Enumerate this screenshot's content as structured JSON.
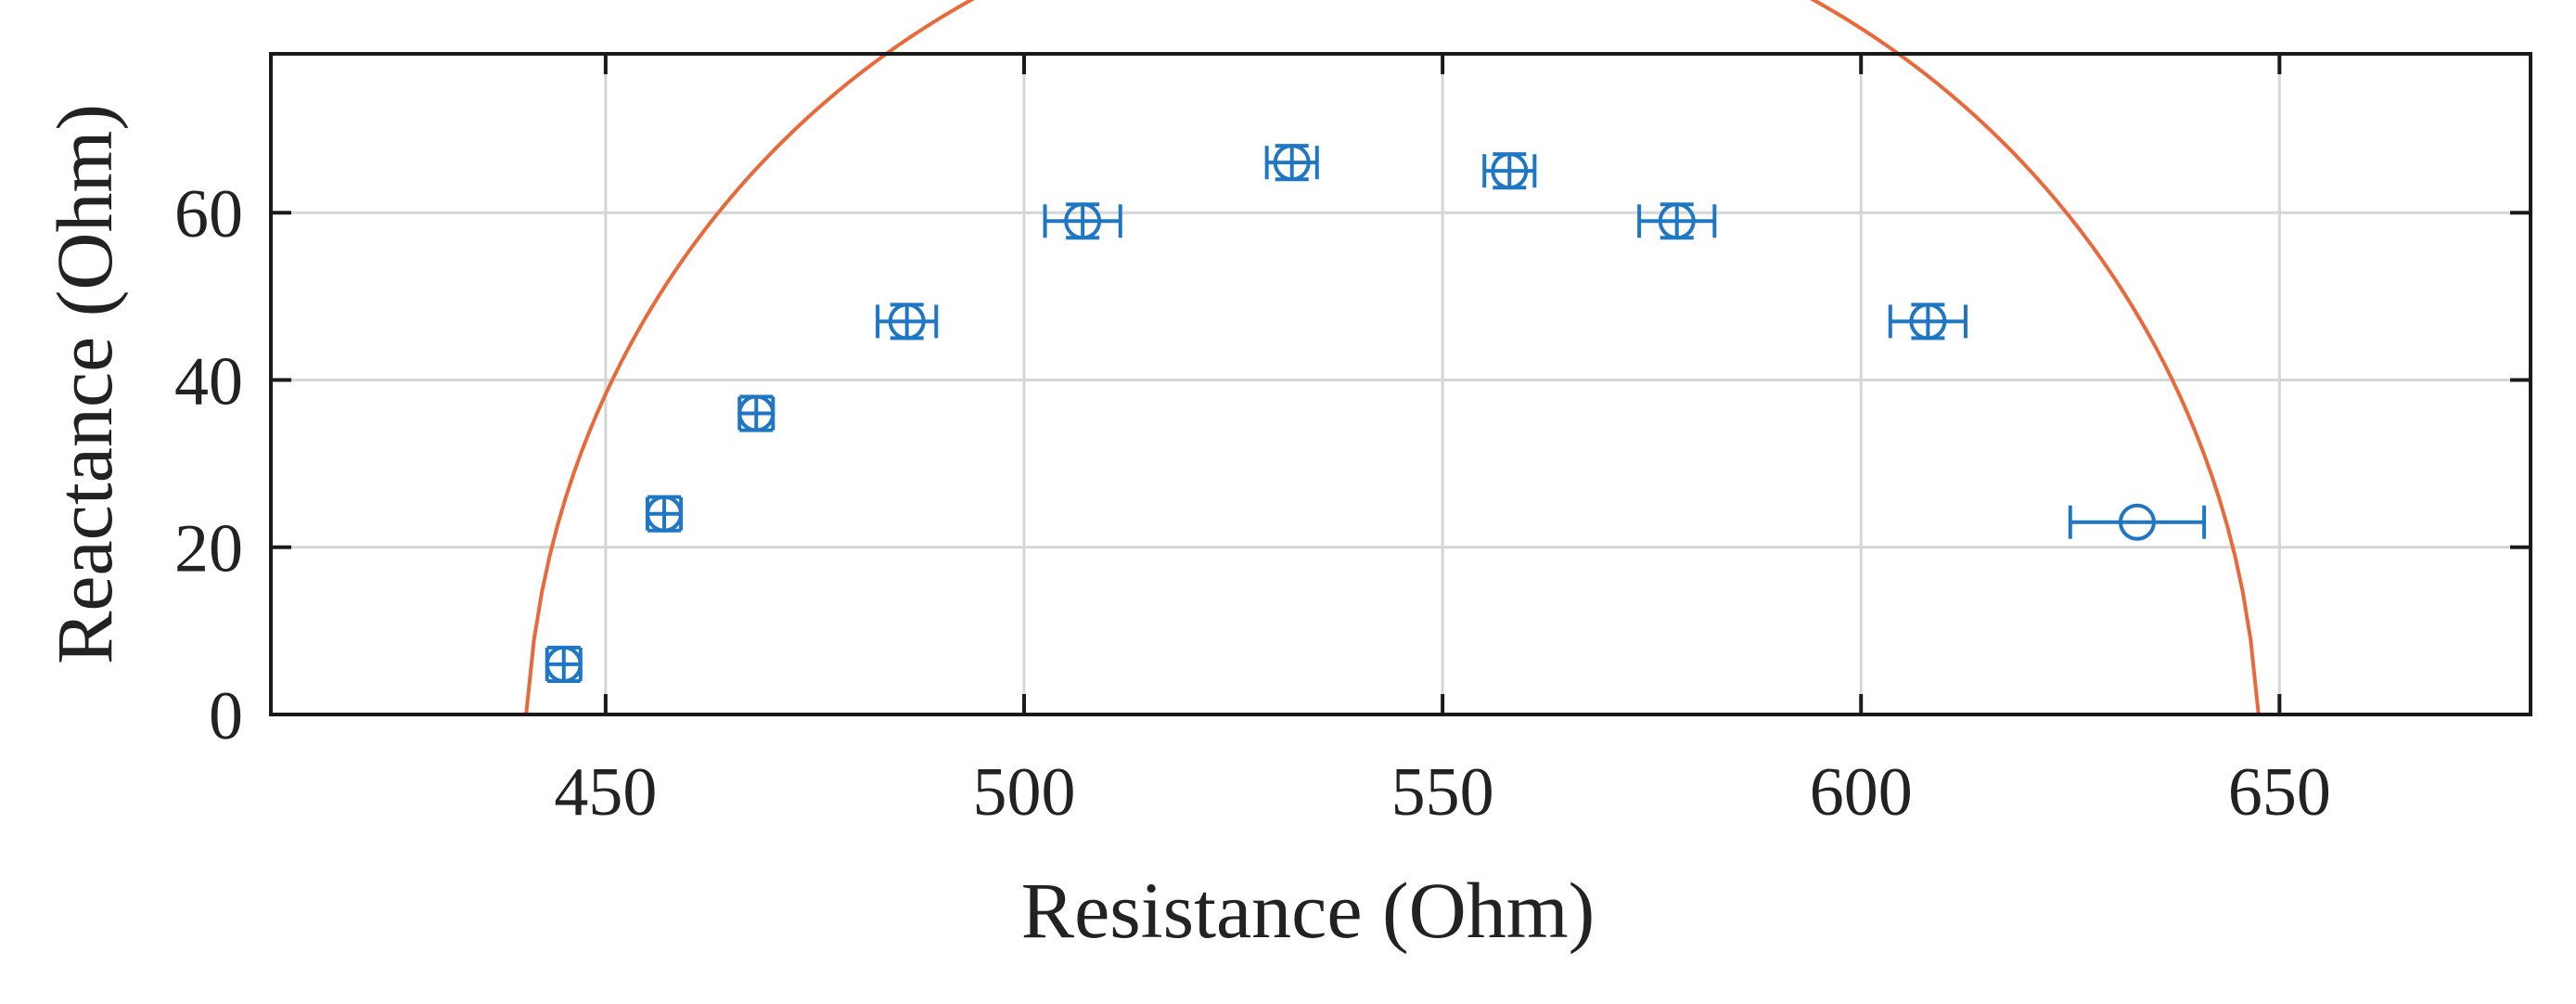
{
  "chart_data": {
    "type": "scatter",
    "xlabel": "Resistance (Ohm)",
    "ylabel": "Reactance (Ohm)",
    "xlim": [
      410,
      680
    ],
    "ylim": [
      0,
      79
    ],
    "x_ticks": [
      450,
      500,
      550,
      600,
      650
    ],
    "y_ticks": [
      0,
      20,
      40,
      60
    ],
    "grid": true,
    "legend": "none",
    "series": [
      {
        "type": "scatter-errorbar",
        "color": "#1f77c4",
        "marker": "circle",
        "points": [
          {
            "x": 445,
            "y": 6,
            "xerr": 2,
            "yerr": 2
          },
          {
            "x": 457,
            "y": 24,
            "xerr": 2,
            "yerr": 2
          },
          {
            "x": 468,
            "y": 36,
            "xerr": 2,
            "yerr": 2
          },
          {
            "x": 486,
            "y": 47,
            "xerr": 3.5,
            "yerr": 2
          },
          {
            "x": 507,
            "y": 59,
            "xerr": 4.5,
            "yerr": 2
          },
          {
            "x": 532,
            "y": 66,
            "xerr": 3,
            "yerr": 2
          },
          {
            "x": 558,
            "y": 65,
            "xerr": 3,
            "yerr": 2
          },
          {
            "x": 578,
            "y": 59,
            "xerr": 4.5,
            "yerr": 2
          },
          {
            "x": 608,
            "y": 47,
            "xerr": 4.5,
            "yerr": 2
          },
          {
            "x": 633,
            "y": 23,
            "xerr": 8,
            "yerr": 0
          }
        ]
      },
      {
        "type": "line",
        "color": "#e8693a",
        "fit": {
          "center_x": 544,
          "center_y": -5,
          "radius": 103.5,
          "x_from": 440.5,
          "x_to": 647.5
        }
      }
    ]
  }
}
